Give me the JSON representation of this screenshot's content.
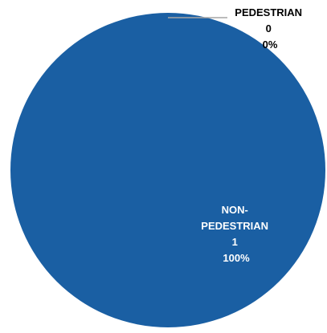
{
  "chart_data": {
    "type": "pie",
    "title": "",
    "slices": [
      {
        "label_lines": [
          "PEDESTRIAN"
        ],
        "value": 0,
        "value_text": "0",
        "percent_text": "0%",
        "color": "#ffffff"
      },
      {
        "label_lines": [
          "NON-",
          "PEDESTRIAN"
        ],
        "value": 1,
        "value_text": "1",
        "percent_text": "100%",
        "color": "#1a5fa3"
      }
    ]
  },
  "colors": {
    "pie_fill": "#1a5fa3",
    "inside_label_text": "#ffffff",
    "outside_label_text": "#000000",
    "leader_line": "#a6a6a6"
  }
}
